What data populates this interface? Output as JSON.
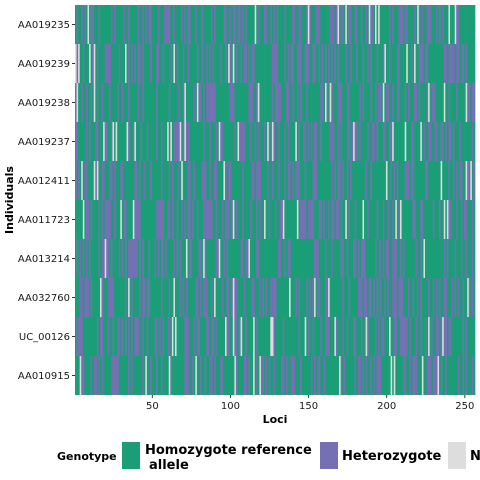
{
  "chart_data": {
    "type": "heatmap",
    "xlabel": "Loci",
    "ylabel": "Individuals",
    "x_range": [
      1,
      256
    ],
    "x_ticks": [
      50,
      100,
      150,
      200,
      250
    ],
    "individuals": [
      "AA019235",
      "AA019239",
      "AA019238",
      "AA019237",
      "AA012411",
      "AA011723",
      "AA013214",
      "AA032760",
      "UC_00126",
      "AA010915"
    ],
    "n_loci": 256,
    "grid": true,
    "legend": {
      "title": "Genotype",
      "position": "bottom",
      "items": [
        {
          "label_line1": "Homozygote reference",
          "label_line2": "allele",
          "color": "#1b9e77"
        },
        {
          "label_line1": "Heterozygote",
          "label_line2": "",
          "color": "#7570b3"
        },
        {
          "label_line1": "N",
          "label_line2": "",
          "color": "#dddddd"
        }
      ]
    },
    "colors": {
      "homozygote": "#1b9e77",
      "heterozygote": "#7570b3",
      "missing": "#dddddd",
      "panel": "#ebebeb",
      "grid": "#ffffff"
    }
  }
}
